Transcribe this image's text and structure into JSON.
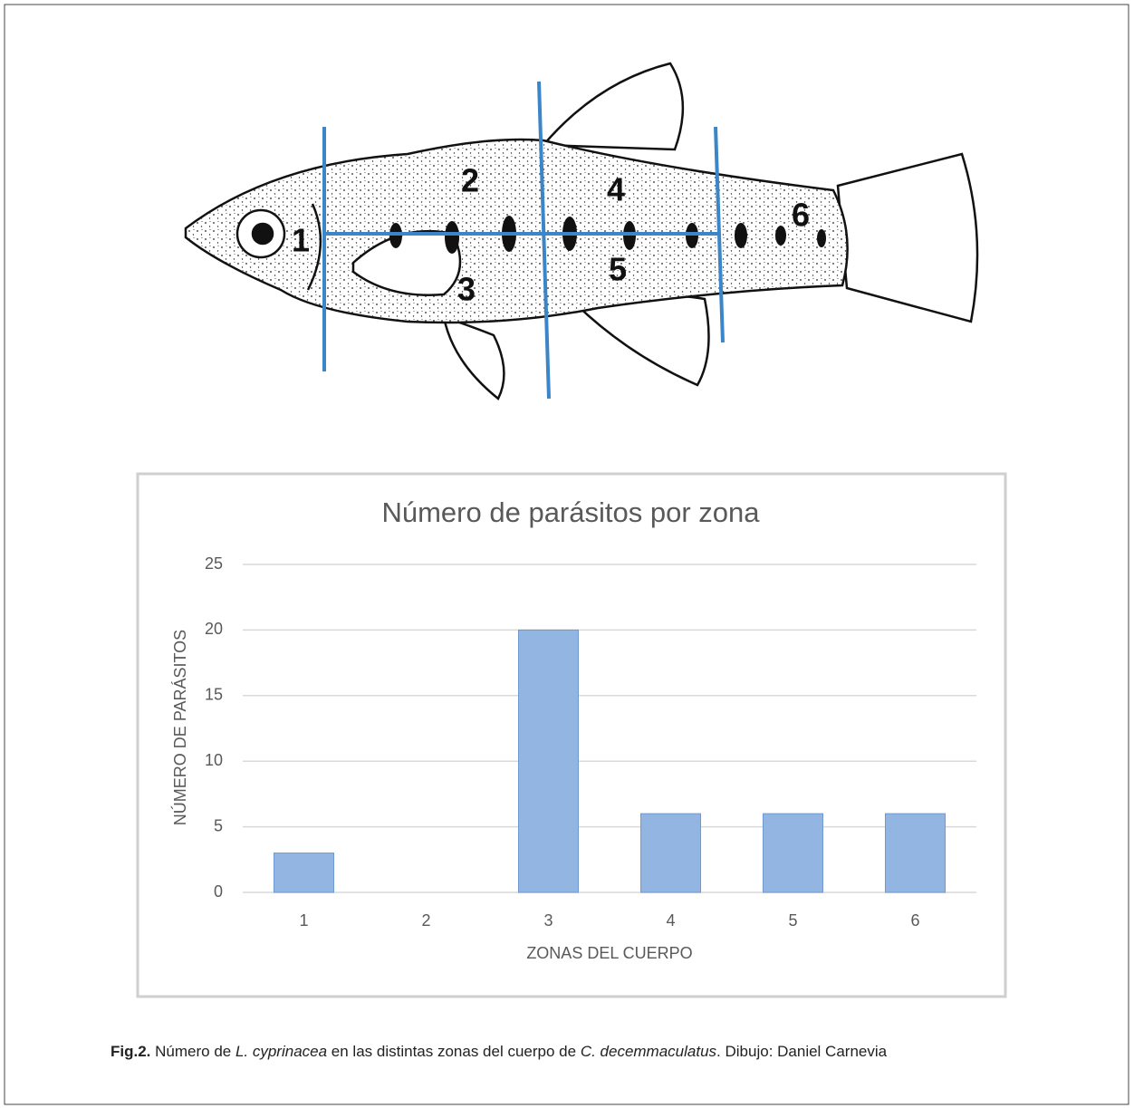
{
  "drawing": {
    "zone_labels": [
      "1",
      "2",
      "3",
      "4",
      "5",
      "6"
    ]
  },
  "chart_data": {
    "type": "bar",
    "title": "Número de parásitos por zona",
    "x_label": "ZONAS DEL CUERPO",
    "y_label": "NÚMERO DE PARÁSITOS",
    "categories": [
      "1",
      "2",
      "3",
      "4",
      "5",
      "6"
    ],
    "values": [
      3,
      0,
      20,
      6,
      6,
      6
    ],
    "color": "#93b5e1",
    "ylim": [
      0,
      25
    ],
    "yticks": [
      0,
      5,
      10,
      15,
      20,
      25
    ],
    "grid": true
  },
  "caption": {
    "parts": [
      {
        "text": "Fig.2.",
        "style": "bold"
      },
      {
        "text": " Número de ",
        "style": "normal"
      },
      {
        "text": "L. cyprinacea",
        "style": "italic"
      },
      {
        "text": " en las distintas zonas del cuerpo de ",
        "style": "normal"
      },
      {
        "text": "C. decemmaculatus",
        "style": "italic"
      },
      {
        "text": ". Dibujo: Daniel Carnevia",
        "style": "normal"
      }
    ]
  }
}
